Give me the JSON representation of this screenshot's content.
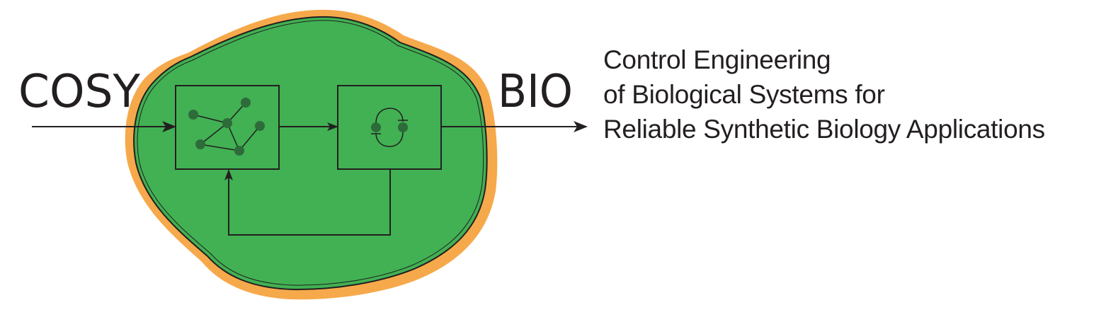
{
  "logo": {
    "left_word": "COSY",
    "right_word": "BIO",
    "colors": {
      "cell_fill": "#41b153",
      "membrane": "#f6a94b",
      "outline": "#231f20",
      "node": "#2e6b3a",
      "text": "#231f20"
    },
    "icons": {
      "network_block": "network-icon",
      "controller_block": "feedback-loop-icon"
    }
  },
  "tagline": {
    "line1": "Control Engineering",
    "line2": "of Biological Systems for",
    "line3": "Reliable Synthetic Biology Applications"
  }
}
